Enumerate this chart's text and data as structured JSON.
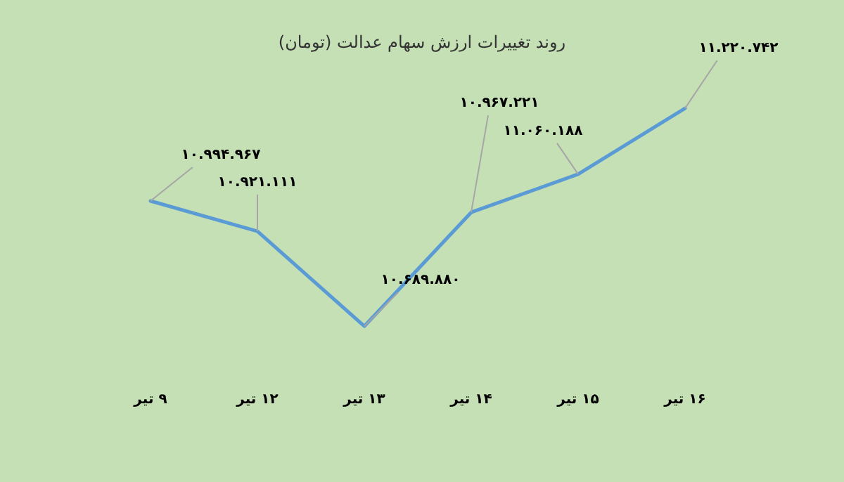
{
  "chart_data": {
    "type": "line",
    "title": "روند تغییرات ارزش سهام عدالت (تومان)",
    "categories": [
      "۹ تیر",
      "۱۲ تیر",
      "۱۳ تیر",
      "۱۴ تیر",
      "۱۵ تیر",
      "۱۶ تیر"
    ],
    "series": [
      {
        "color": "#5b9bd5",
        "values": [
          10994967,
          10921111,
          10689880,
          10967221,
          11060188,
          11220742
        ],
        "value_labels": [
          "۱۰.۹۹۴.۹۶۷",
          "۱۰.۹۲۱.۱۱۱",
          "۱۰.۶۸۹.۸۸۰",
          "۱۰.۹۶۷.۲۲۱",
          "۱۱.۰۶۰.۱۸۸",
          "۱۱.۲۲۰.۷۴۲"
        ]
      }
    ],
    "marker": "none",
    "line_style": "solid"
  }
}
